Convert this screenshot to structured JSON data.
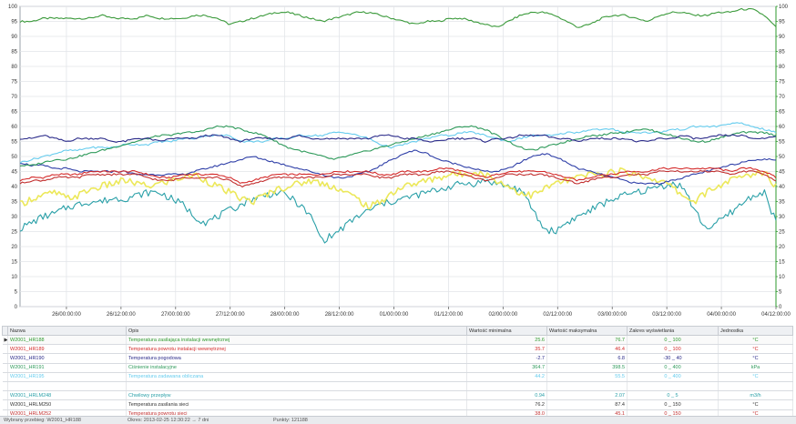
{
  "chart_data": {
    "type": "line",
    "ylim": [
      0,
      100
    ],
    "y_ticks": [
      "0",
      "5",
      "10",
      "15",
      "20",
      "25",
      "30",
      "35",
      "40",
      "45",
      "50",
      "55",
      "60",
      "65",
      "70",
      "75",
      "80",
      "85",
      "90",
      "95",
      "100"
    ],
    "x_ticks": [
      "26/00:00:00",
      "26/12:00:00",
      "27/00:00:00",
      "27/12:00:00",
      "28/00:00:00",
      "28/12:00:00",
      "01/00:00:00",
      "01/12:00:00",
      "02/00:00:00",
      "02/12:00:00",
      "03/00:00:00",
      "03/12:00:00",
      "04/00:00:00",
      "04/12:00:00"
    ],
    "grid": true,
    "series": [
      {
        "name": "W2001_HR188",
        "color": "#3b9a3b",
        "values": [
          95,
          95,
          96,
          96,
          96,
          96,
          96,
          97,
          96,
          96,
          96,
          97,
          96,
          96,
          96,
          97,
          97,
          96,
          94,
          95,
          96,
          97,
          98,
          98,
          97,
          96,
          95,
          96,
          97,
          98,
          98,
          97,
          96,
          95,
          94,
          95,
          95,
          96,
          96,
          95,
          94,
          93,
          95,
          97,
          98,
          98,
          97,
          95,
          93,
          94,
          96,
          97,
          97,
          96,
          95,
          97,
          98,
          98,
          97,
          97,
          98,
          98,
          99,
          99,
          97,
          93
        ]
      },
      {
        "name": "W2001_HR189",
        "color": "#d42a2a",
        "values": [
          42,
          43,
          43,
          44,
          44,
          44,
          45,
          45,
          45,
          45,
          45,
          44,
          43,
          43,
          44,
          44,
          44,
          44,
          43,
          41,
          42,
          43,
          44,
          44,
          44,
          44,
          44,
          45,
          45,
          45,
          45,
          44,
          44,
          45,
          45,
          45,
          46,
          46,
          45,
          44,
          43,
          44,
          45,
          45,
          45,
          45,
          44,
          43,
          42,
          43,
          44,
          44,
          45,
          45,
          45,
          46,
          46,
          46,
          46,
          46,
          46,
          45,
          46,
          46,
          45,
          43
        ]
      },
      {
        "name": "W2001_HR190",
        "color": "#2b2b8a",
        "values": [
          56,
          56,
          57,
          56,
          55,
          56,
          56,
          56,
          55,
          55,
          56,
          56,
          55,
          56,
          56,
          56,
          57,
          57,
          56,
          55,
          56,
          56,
          56,
          56,
          57,
          56,
          56,
          56,
          56,
          56,
          56,
          57,
          57,
          56,
          56,
          55,
          55,
          56,
          56,
          56,
          55,
          56,
          56,
          57,
          57,
          57,
          56,
          56,
          55,
          56,
          56,
          56,
          56,
          55,
          55,
          56,
          56,
          57,
          56,
          56,
          57,
          57,
          57,
          56,
          56,
          57
        ]
      },
      {
        "name": "W2001_HR191",
        "color": "#2e9a5a",
        "values": [
          47,
          47,
          48,
          49,
          49,
          50,
          51,
          52,
          53,
          54,
          55,
          56,
          57,
          57,
          58,
          58,
          59,
          60,
          60,
          59,
          58,
          57,
          55,
          53,
          52,
          51,
          50,
          49,
          50,
          51,
          52,
          53,
          54,
          55,
          56,
          57,
          58,
          59,
          60,
          60,
          59,
          57,
          55,
          53,
          52,
          53,
          54,
          55,
          56,
          57,
          57,
          58,
          58,
          59,
          59,
          58,
          57,
          56,
          55,
          55,
          56,
          57,
          58,
          58,
          58,
          57
        ]
      },
      {
        "name": "W2001_HR195",
        "color": "#66ccee",
        "values": [
          48,
          49,
          50,
          51,
          52,
          52,
          53,
          53,
          53,
          54,
          54,
          54,
          55,
          55,
          56,
          56,
          57,
          57,
          57,
          55,
          55,
          55,
          56,
          56,
          57,
          57,
          57,
          58,
          58,
          57,
          56,
          54,
          53,
          54,
          55,
          56,
          57,
          57,
          58,
          58,
          57,
          56,
          55,
          56,
          57,
          57,
          57,
          58,
          58,
          59,
          59,
          59,
          58,
          58,
          58,
          58,
          59,
          59,
          60,
          60,
          60,
          61,
          61,
          60,
          59,
          58
        ]
      },
      {
        "name": "W2001_HR198",
        "color": "#3040a8",
        "values": [
          48,
          47,
          47,
          46,
          46,
          45,
          45,
          45,
          45,
          45,
          44,
          44,
          44,
          44,
          44,
          45,
          46,
          47,
          48,
          49,
          50,
          49,
          48,
          47,
          46,
          45,
          44,
          43,
          43,
          44,
          45,
          47,
          49,
          51,
          52,
          51,
          49,
          48,
          47,
          46,
          45,
          45,
          46,
          48,
          50,
          51,
          50,
          48,
          46,
          45,
          44,
          43,
          42,
          41,
          41,
          41,
          42,
          43,
          44,
          45,
          46,
          47,
          48,
          49,
          49,
          49
        ]
      },
      {
        "name": "W2001_HRLM248",
        "color": "#ece85a",
        "values": [
          34,
          36,
          37,
          38,
          36,
          37,
          39,
          40,
          41,
          42,
          41,
          40,
          41,
          42,
          43,
          44,
          42,
          40,
          38,
          36,
          35,
          37,
          39,
          40,
          41,
          42,
          41,
          40,
          38,
          36,
          33,
          35,
          38,
          40,
          41,
          42,
          43,
          44,
          44,
          45,
          44,
          42,
          40,
          38,
          37,
          39,
          41,
          42,
          43,
          44,
          44,
          45,
          45,
          44,
          43,
          42,
          40,
          37,
          35,
          38,
          40,
          42,
          43,
          44,
          45,
          40
        ]
      },
      {
        "name": "W2001_HRLM250",
        "color": "#2aa0a8",
        "values": [
          26,
          28,
          30,
          31,
          33,
          34,
          35,
          35,
          36,
          36,
          37,
          38,
          38,
          36,
          34,
          30,
          28,
          30,
          32,
          34,
          36,
          37,
          38,
          37,
          34,
          30,
          22,
          24,
          27,
          30,
          32,
          34,
          35,
          36,
          37,
          38,
          39,
          40,
          41,
          41,
          42,
          41,
          40,
          39,
          33,
          26,
          25,
          28,
          30,
          32,
          34,
          36,
          37,
          38,
          39,
          40,
          41,
          40,
          32,
          26,
          28,
          31,
          34,
          37,
          38,
          28
        ]
      },
      {
        "name": "W2001_HRLM252",
        "color": "#c23030",
        "values": [
          41,
          42,
          42,
          43,
          43,
          43,
          44,
          44,
          44,
          44,
          44,
          43,
          42,
          42,
          43,
          43,
          43,
          43,
          42,
          40,
          41,
          42,
          43,
          43,
          43,
          43,
          43,
          44,
          44,
          44,
          44,
          43,
          43,
          44,
          44,
          44,
          45,
          45,
          44,
          43,
          42,
          43,
          44,
          44,
          44,
          44,
          43,
          42,
          41,
          42,
          43,
          43,
          44,
          44,
          44,
          45,
          45,
          45,
          45,
          45,
          45,
          44,
          45,
          45,
          44,
          42
        ]
      }
    ]
  },
  "table": {
    "headers": {
      "name": "Nazwa",
      "desc": "Opis",
      "min": "Wartość minimalna",
      "max": "Wartość maksymalna",
      "range": "Zakres wyświetlania",
      "unit": "Jednostka"
    },
    "rows": [
      {
        "name": "W2001_HR188",
        "desc": "Temperatura zasilająca instalacji wewnętrznej",
        "min": "25.6",
        "max": "76.7",
        "range": "0 _ 100",
        "unit": "°C",
        "color": "#2e9a2e",
        "marker": "▶",
        "selected": true
      },
      {
        "name": "W2001_HR189",
        "desc": "Temperatura powrotu instalacji wewnętrznej",
        "min": "35.7",
        "max": "46.4",
        "range": "0 _ 100",
        "unit": "°C",
        "color": "#d42a2a",
        "marker": "",
        "selected": false
      },
      {
        "name": "W2001_HR190",
        "desc": "Temperatura pogodowa",
        "min": "-2.7",
        "max": "6.8",
        "range": "-30 _ 40",
        "unit": "°C",
        "color": "#2b2b8a",
        "marker": "",
        "selected": false
      },
      {
        "name": "W2001_HR191",
        "desc": "Ciśnienie instalacyjne",
        "min": "364.7",
        "max": "398.5",
        "range": "0 _ 400",
        "unit": "kPa",
        "color": "#2e9a5a",
        "marker": "",
        "selected": false
      },
      {
        "name": "W2001_HR195",
        "desc": "Temperatura zadawana obliczana",
        "min": "44.2",
        "max": "55.5",
        "range": "0 _ 400",
        "unit": "°C",
        "color": "#66ccee",
        "marker": "",
        "selected": false
      },
      {
        "name": "",
        "desc": "",
        "min": "",
        "max": "",
        "range": "",
        "unit": "",
        "color": "#ece85a",
        "marker": "",
        "selected": false
      },
      {
        "name": "W2001_HRLM248",
        "desc": "Chwilowy przepływ",
        "min": "0.94",
        "max": "2.07",
        "range": "0 _ 5",
        "unit": "m3/h",
        "color": "#2aa0a8",
        "marker": "",
        "selected": false
      },
      {
        "name": "W2001_HRLM250",
        "desc": "Temperatura zasilania sieci",
        "min": "76.2",
        "max": "87.4",
        "range": "0 _ 150",
        "unit": "°C",
        "color": "#333333",
        "marker": "",
        "selected": false
      },
      {
        "name": "W2001_HRLM252",
        "desc": "Temperatura powrotu sieci",
        "min": "38.0",
        "max": "45.1",
        "range": "0 _ 150",
        "unit": "°C",
        "color": "#c23030",
        "marker": "",
        "selected": false
      }
    ]
  },
  "status": {
    "selected": "Wybrany przebieg: W2001_HR188",
    "window": "Okres: 2013-02-25 12:30:22 → 7 dni",
    "points": "Punkty: 121188"
  }
}
